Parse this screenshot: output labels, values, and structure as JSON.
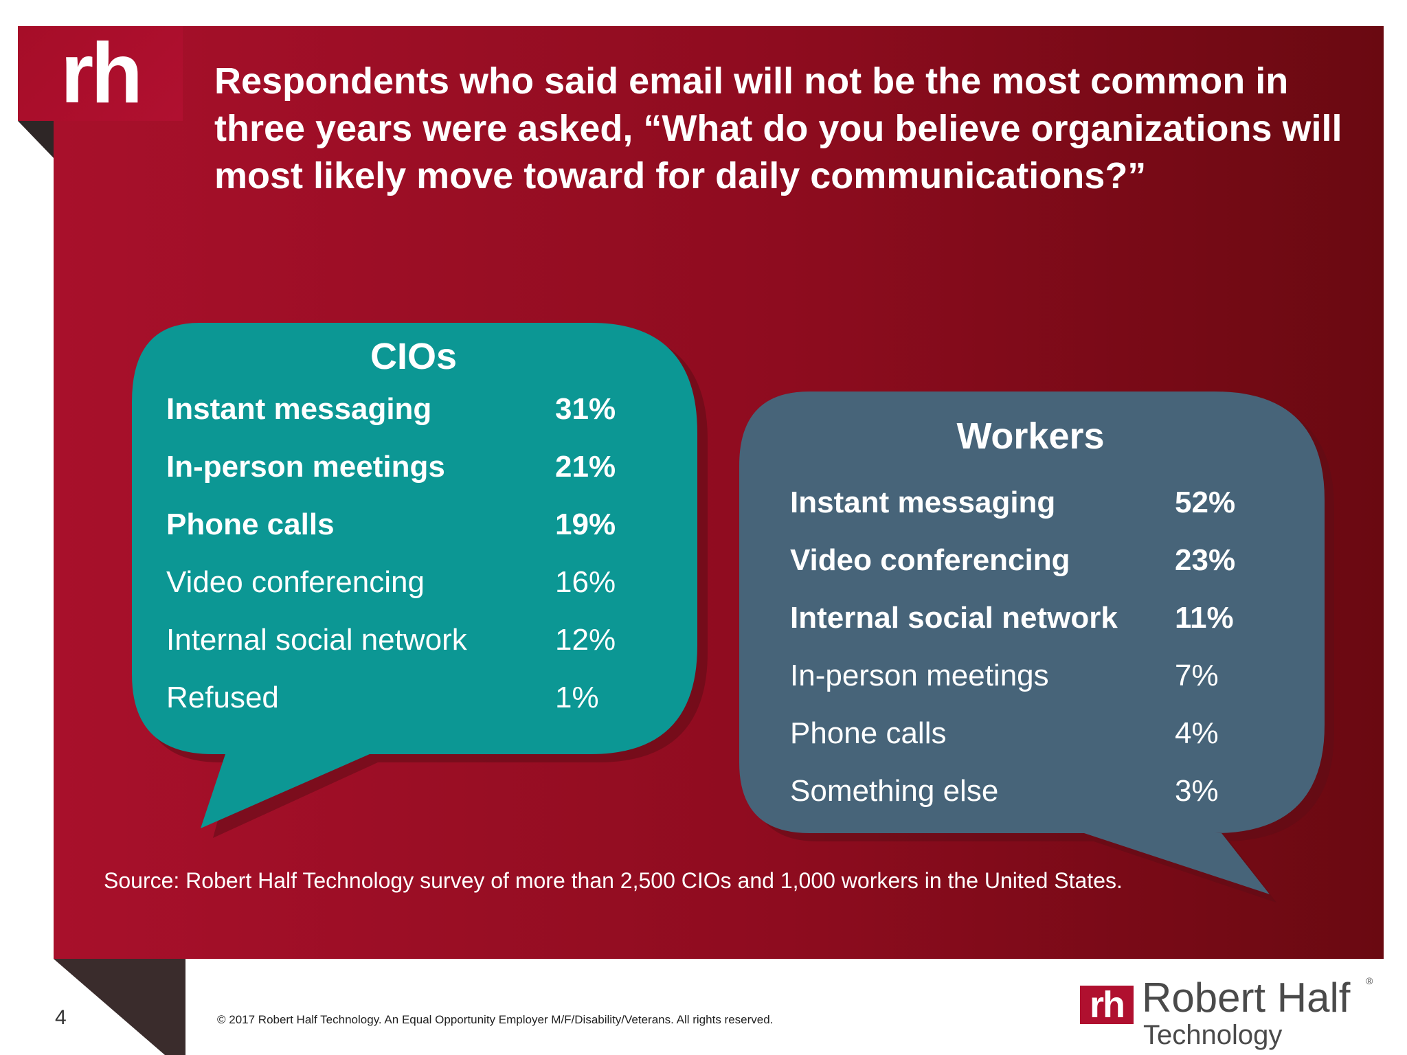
{
  "header": {
    "logo_text": "rh",
    "question": "Respondents who said email will not be the most common in three years were asked, “What do you believe organizations will most likely move toward for daily communications?”"
  },
  "cios": {
    "title": "CIOs",
    "color": "#0c9794",
    "rows": [
      {
        "label": "Instant messaging",
        "value": "31%",
        "bold": true
      },
      {
        "label": "In-person meetings",
        "value": "21%",
        "bold": true
      },
      {
        "label": "Phone calls",
        "value": "19%",
        "bold": true
      },
      {
        "label": "Video conferencing",
        "value": "16%",
        "bold": false
      },
      {
        "label": "Internal social network",
        "value": "12%",
        "bold": false
      },
      {
        "label": "Refused",
        "value": "1%",
        "bold": false
      }
    ]
  },
  "workers": {
    "title": "Workers",
    "color": "#476479",
    "rows": [
      {
        "label": "Instant messaging",
        "value": "52%",
        "bold": true
      },
      {
        "label": "Video conferencing",
        "value": "23%",
        "bold": true
      },
      {
        "label": "Internal social network",
        "value": "11%",
        "bold": true
      },
      {
        "label": "In-person meetings",
        "value": "7%",
        "bold": false
      },
      {
        "label": "Phone calls",
        "value": "4%",
        "bold": false
      },
      {
        "label": "Something else",
        "value": "3%",
        "bold": false
      }
    ]
  },
  "source": "Source: Robert Half Technology survey of more than 2,500 CIOs and 1,000 workers in the United States.",
  "footer": {
    "page_number": "4",
    "copyright": "© 2017 Robert Half Technology. An Equal Opportunity Employer M/F/Disability/Veterans. All rights reserved.",
    "brand_mark": "rh",
    "brand_name": "Robert Half",
    "brand_registered": "®",
    "brand_sub": "Technology"
  },
  "colors": {
    "banner_left": "#a8102b",
    "banner_right": "#6c0a12",
    "corner_dark": "#3b2a2a"
  }
}
